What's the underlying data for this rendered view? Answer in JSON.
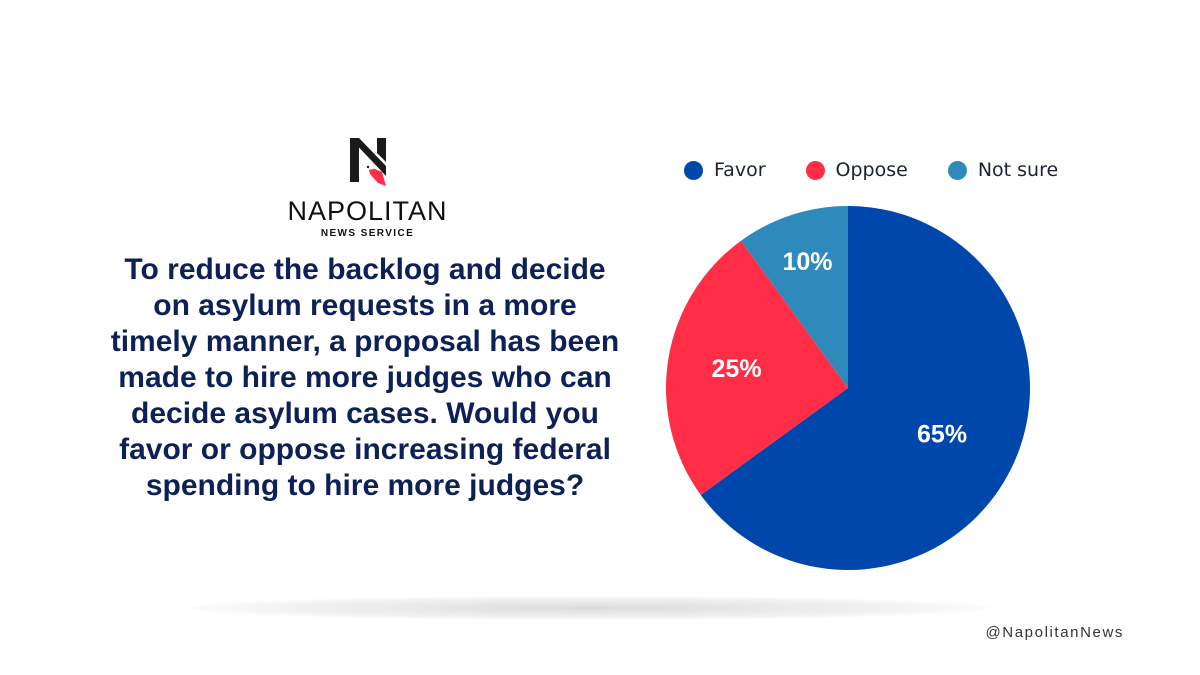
{
  "logo": {
    "name": "NAPOLITAN",
    "sub": "NEWS SERVICE",
    "icon": "napolitan-n-bird-logo"
  },
  "question": "To reduce the backlog and decide on asylum requests in a more timely manner, a proposal has been made to hire more judges who can decide asylum cases. Would you favor or oppose increasing federal spending to hire more judges?",
  "handle": "@NapolitanNews",
  "colors": {
    "favor": "#0047ab",
    "oppose": "#ff2d46",
    "not_sure": "#2e8abb",
    "question_text": "#0d2157"
  },
  "chart_data": {
    "type": "pie",
    "title": "",
    "legend_position": "top",
    "labels": [
      "Favor",
      "Oppose",
      "Not sure"
    ],
    "values": [
      65,
      25,
      10
    ],
    "data_labels": [
      "65%",
      "25%",
      "10%"
    ],
    "colors": [
      "#0047ab",
      "#ff2d46",
      "#2e8abb"
    ],
    "start_angle": "12 o'clock",
    "direction": "clockwise"
  }
}
